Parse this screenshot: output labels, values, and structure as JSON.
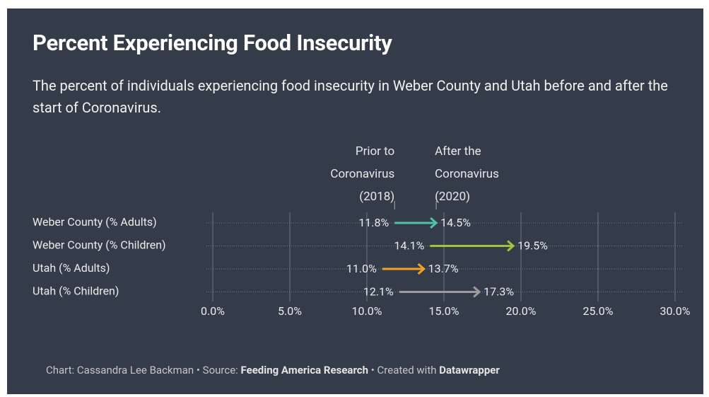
{
  "chart_data": {
    "type": "arrow",
    "title": "Percent Experiencing Food Insecurity",
    "subtitle": "The percent of individuals experiencing food insecurity in Weber County and Utah before and after the start of Coronavirus.",
    "categories": [
      "Weber County (% Adults)",
      "Weber County (% Children)",
      "Utah (% Adults)",
      "Utah (% Children)"
    ],
    "colors": [
      "#4fc3a6",
      "#9dc43c",
      "#f2a12b",
      "#9b9b9b"
    ],
    "series": [
      {
        "name": "Prior to Coronavirus (2018)",
        "values": [
          11.8,
          14.1,
          11.0,
          12.1
        ],
        "value_labels": [
          "11.8%",
          "14.1%",
          "11.0%",
          "12.1%"
        ]
      },
      {
        "name": "After the Coronavirus (2020)",
        "values": [
          14.5,
          19.5,
          13.7,
          17.3
        ],
        "value_labels": [
          "14.5%",
          "19.5%",
          "13.7%",
          "17.3%"
        ]
      }
    ],
    "xlim": [
      0,
      30
    ],
    "xticks": [
      {
        "value": 0,
        "label": "0.0%"
      },
      {
        "value": 5,
        "label": "5.0%"
      },
      {
        "value": 10,
        "label": "10.0%"
      },
      {
        "value": 15,
        "label": "15.0%"
      },
      {
        "value": 20,
        "label": "20.0%"
      },
      {
        "value": 25,
        "label": "25.0%"
      },
      {
        "value": 30,
        "label": "30.0%"
      }
    ],
    "grid": true,
    "footer": {
      "credit": "Chart: Cassandra Lee Backman",
      "separator": "•",
      "source_label": "Source:",
      "source": "Feeding America Research",
      "tool_label": "Created with",
      "tool": "Datawrapper"
    }
  }
}
